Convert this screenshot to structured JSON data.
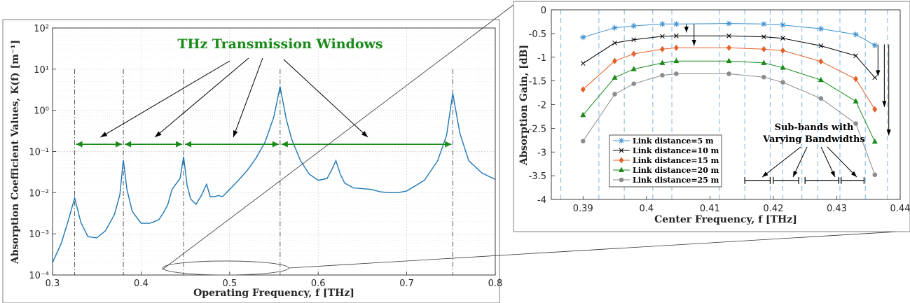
{
  "chart_data": [
    {
      "type": "line",
      "xlabel": "Operating Frequency, f [THz]",
      "ylabel": "Absorption Coefficient Values, K(f) [m⁻¹]",
      "xlim": [
        0.3,
        0.8
      ],
      "ylim": [
        0.0001,
        100
      ],
      "yscale": "log",
      "xticks": [
        "0.3",
        "0.4",
        "0.5",
        "0.6",
        "0.7",
        "0.8"
      ],
      "yticks": [
        "10⁻⁴",
        "10⁻³",
        "10⁻²",
        "10⁻¹",
        "10⁰",
        "10¹",
        "10²"
      ],
      "grid": true,
      "annotation": "THz Transmission Windows",
      "line_color": "#1f77b4",
      "peak_markers_x": [
        0.325,
        0.38,
        0.448,
        0.557,
        0.752
      ],
      "windows": [
        [
          0.325,
          0.38
        ],
        [
          0.38,
          0.448
        ],
        [
          0.448,
          0.557
        ],
        [
          0.557,
          0.752
        ]
      ],
      "window_level": 0.15,
      "series": [
        {
          "values_x": [
            0.3,
            0.31,
            0.318,
            0.325,
            0.332,
            0.34,
            0.35,
            0.36,
            0.37,
            0.376,
            0.38,
            0.384,
            0.39,
            0.4,
            0.41,
            0.42,
            0.425,
            0.43,
            0.435,
            0.44,
            0.444,
            0.448,
            0.452,
            0.456,
            0.462,
            0.468,
            0.474,
            0.478,
            0.483,
            0.487,
            0.492,
            0.5,
            0.51,
            0.52,
            0.53,
            0.54,
            0.55,
            0.557,
            0.564,
            0.57,
            0.58,
            0.59,
            0.6,
            0.61,
            0.615,
            0.62,
            0.625,
            0.63,
            0.64,
            0.65,
            0.66,
            0.67,
            0.68,
            0.69,
            0.7,
            0.72,
            0.735,
            0.745,
            0.752,
            0.76,
            0.77,
            0.785,
            0.8
          ],
          "values_y": [
            0.0002,
            0.0006,
            0.0022,
            0.0075,
            0.0019,
            0.00085,
            0.0008,
            0.0012,
            0.003,
            0.009,
            0.062,
            0.012,
            0.0035,
            0.0018,
            0.0018,
            0.0022,
            0.0032,
            0.005,
            0.012,
            0.017,
            0.022,
            0.075,
            0.015,
            0.007,
            0.0052,
            0.0085,
            0.016,
            0.008,
            0.008,
            0.0085,
            0.008,
            0.012,
            0.02,
            0.035,
            0.07,
            0.17,
            0.7,
            3.8,
            0.6,
            0.2,
            0.06,
            0.028,
            0.02,
            0.022,
            0.035,
            0.06,
            0.028,
            0.017,
            0.013,
            0.0125,
            0.012,
            0.0105,
            0.01,
            0.01,
            0.011,
            0.02,
            0.06,
            0.25,
            2.6,
            0.28,
            0.06,
            0.03,
            0.021
          ]
        }
      ]
    },
    {
      "type": "line",
      "xlabel": "Center Frequency, f [THz]",
      "ylabel": "Absorption Gain, [dB]",
      "xlim": [
        0.385,
        0.44
      ],
      "ylim": [
        -4,
        0
      ],
      "xticks": [
        "0.39",
        "0.4",
        "0.41",
        "0.42",
        "0.43",
        "0.44"
      ],
      "yticks": [
        "0",
        "-0.5",
        "-1",
        "-1.5",
        "-2",
        "-2.5",
        "-3",
        "-3.5",
        "-4"
      ],
      "subband_edges_x": [
        0.3865,
        0.3925,
        0.3965,
        0.401,
        0.404,
        0.4115,
        0.4155,
        0.4195,
        0.4215,
        0.4245,
        0.427,
        0.4305,
        0.4345,
        0.438
      ],
      "annotation": "Sub-bands with Varying Bandwidths",
      "legend_location": "lower-left",
      "categories": [
        0.39,
        0.395,
        0.398,
        0.4025,
        0.4047,
        0.413,
        0.4185,
        0.4215,
        0.4275,
        0.433,
        0.436
      ],
      "series": [
        {
          "name": "Link distance=5 m",
          "marker": "asterisk",
          "color": "#3b8fd0",
          "values": [
            -0.58,
            -0.38,
            -0.34,
            -0.3,
            -0.3,
            -0.29,
            -0.3,
            -0.32,
            -0.4,
            -0.52,
            -0.75
          ]
        },
        {
          "name": "Link distance=10 m",
          "marker": "x",
          "color": "#000000",
          "values": [
            -1.13,
            -0.7,
            -0.63,
            -0.56,
            -0.55,
            -0.55,
            -0.57,
            -0.6,
            -0.76,
            -0.97,
            -1.43
          ]
        },
        {
          "name": "Link distance=15 m",
          "marker": "diamond",
          "color": "#e4602a",
          "values": [
            -1.68,
            -1.08,
            -0.93,
            -0.83,
            -0.8,
            -0.8,
            -0.83,
            -0.86,
            -1.09,
            -1.46,
            -2.1
          ]
        },
        {
          "name": "Link distance=20 m",
          "marker": "triangle",
          "color": "#1a8a1a",
          "values": [
            -2.22,
            -1.43,
            -1.25,
            -1.12,
            -1.08,
            -1.08,
            -1.12,
            -1.22,
            -1.48,
            -1.93,
            -2.78
          ]
        },
        {
          "name": "Link distance=25 m",
          "marker": "circle",
          "color": "#8c8c8c",
          "values": [
            -2.77,
            -1.78,
            -1.56,
            -1.38,
            -1.35,
            -1.35,
            -1.42,
            -1.53,
            -1.87,
            -2.4,
            -3.48
          ]
        }
      ]
    }
  ]
}
